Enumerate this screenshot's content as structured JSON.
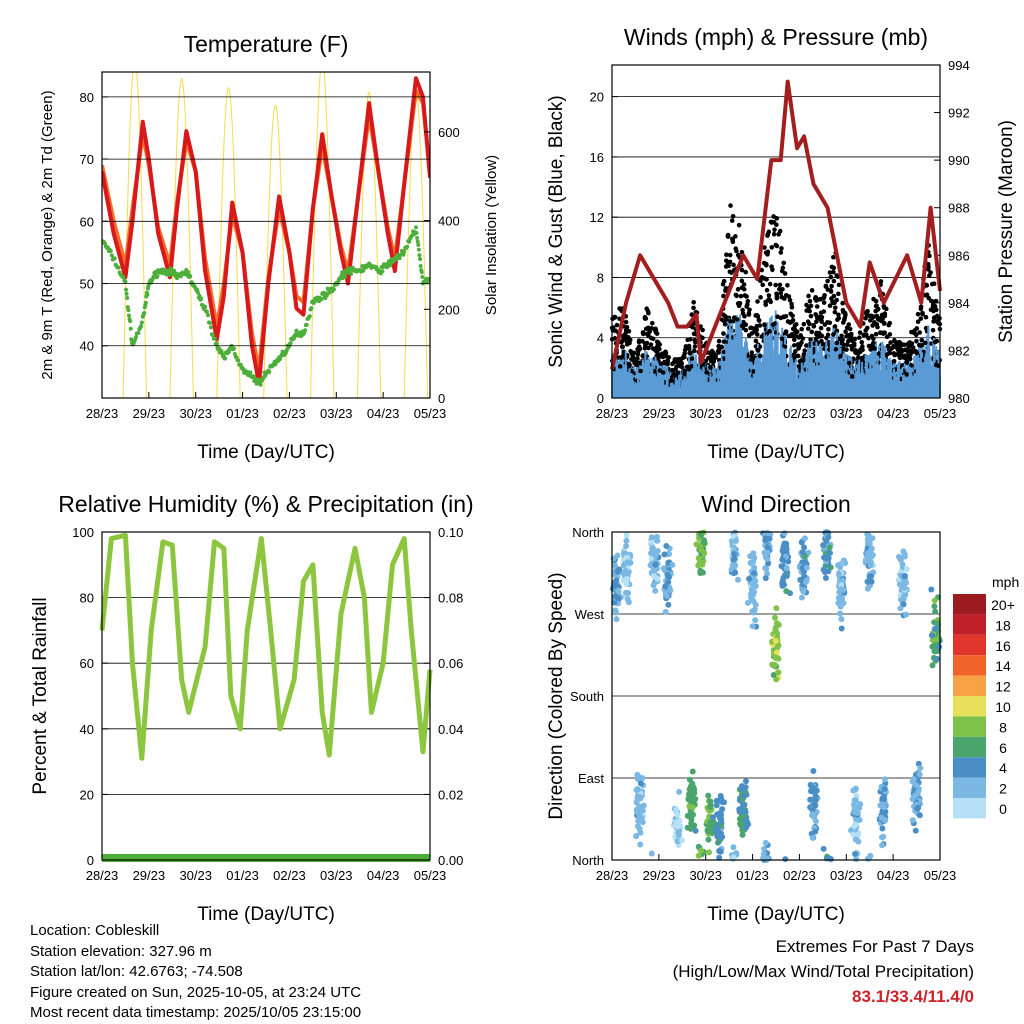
{
  "info": {
    "location": "Location: Cobleskill",
    "elevation": "Station elevation: 327.96 m",
    "latlon": "Station lat/lon: 42.6763; -74.508",
    "created": "Figure created on Sun, 2025-10-05, at 23:24 UTC",
    "recent": "Most recent data timestamp: 2025/10/05 23:15:00"
  },
  "extremes": {
    "title": "Extremes For Past 7 Days",
    "subtitle": "(High/Low/Max Wind/Total Precipitation)",
    "values": "83.1/33.4/11.4/0"
  },
  "x_ticks": [
    "28/23",
    "29/23",
    "30/23",
    "01/23",
    "02/23",
    "03/23",
    "04/23",
    "05/23"
  ],
  "chart_data": [
    {
      "type": "line",
      "title": "Temperature (F)",
      "xlabel": "Time (Day/UTC)",
      "ylabel": "2m & 9m T (Red, Orange) & 2m Td (Green)",
      "y2label": "Solar Insolation (Yellow)",
      "ylim": [
        31.6,
        84
      ],
      "y2lim": [
        0,
        735
      ],
      "yticks": [
        40,
        50,
        60,
        70,
        80
      ],
      "y2ticks": [
        0,
        200,
        400,
        600
      ],
      "t": [
        0,
        0.25,
        0.5,
        0.65,
        0.87,
        1.0,
        1.2,
        1.45,
        1.6,
        1.8,
        2.0,
        2.2,
        2.45,
        2.6,
        2.78,
        3.0,
        3.2,
        3.35,
        3.55,
        3.78,
        4.0,
        4.15,
        4.3,
        4.5,
        4.7,
        4.9,
        5.1,
        5.25,
        5.45,
        5.7,
        5.9,
        6.1,
        6.25,
        6.45,
        6.7,
        6.85,
        7.0
      ],
      "series": [
        {
          "name": "2m T",
          "color": "#d7191c",
          "values": [
            68,
            58,
            51,
            60,
            76,
            70,
            58,
            51,
            62,
            74.5,
            68,
            52,
            41,
            48,
            63,
            55,
            40,
            34,
            50,
            64,
            55,
            46,
            45,
            62,
            74,
            64,
            55,
            50,
            63,
            79,
            68,
            58,
            52,
            66,
            83,
            80,
            67
          ]
        },
        {
          "name": "9m T",
          "color": "#f46d2a",
          "values": [
            69,
            60,
            53,
            62,
            74,
            69,
            59,
            53,
            63,
            73,
            68,
            54,
            43,
            50,
            61,
            55,
            42,
            36,
            51,
            62,
            55,
            48,
            47,
            62,
            72,
            64,
            56,
            52,
            63,
            77,
            68,
            59,
            54,
            66,
            81,
            79,
            68
          ]
        },
        {
          "name": "2m Td",
          "color": "#4daf3a",
          "values": [
            57,
            54,
            50,
            40,
            44,
            50,
            52,
            52,
            51,
            52,
            49,
            46,
            40,
            38,
            40,
            36,
            35,
            34,
            36,
            38,
            40,
            42,
            42,
            47,
            48,
            49,
            51,
            52,
            52,
            53,
            52,
            53,
            54,
            55,
            59,
            50,
            51
          ]
        }
      ],
      "solar_peaks": [
        {
          "day": 0,
          "peak": 760
        },
        {
          "day": 1,
          "peak": 720
        },
        {
          "day": 2,
          "peak": 700
        },
        {
          "day": 3,
          "peak": 660
        },
        {
          "day": 4,
          "peak": 760
        },
        {
          "day": 5,
          "peak": 690
        },
        {
          "day": 6,
          "peak": 690
        }
      ]
    },
    {
      "type": "scatter",
      "title": "Winds (mph) & Pressure (mb)",
      "xlabel": "Time (Day/UTC)",
      "ylabel": "Sonic Wind & Gust (Blue, Black)",
      "y2label": "Station Pressure (Maroon)",
      "ylim": [
        0,
        22.1
      ],
      "y2lim": [
        980,
        994
      ],
      "yticks": [
        0,
        4,
        8,
        12,
        16,
        20
      ],
      "y2ticks": [
        980,
        982,
        984,
        986,
        988,
        990,
        992,
        994
      ],
      "t": [
        0,
        0.25,
        0.5,
        0.75,
        1.0,
        1.25,
        1.5,
        1.75,
        2.0,
        2.25,
        2.5,
        2.75,
        3.0,
        3.25,
        3.5,
        3.75,
        4.0,
        4.25,
        4.5,
        4.75,
        5.0,
        5.25,
        5.5,
        5.75,
        6.0,
        6.25,
        6.5,
        6.75,
        7.0
      ],
      "gust_level": [
        4,
        5,
        2,
        5,
        3,
        2,
        2,
        5,
        3,
        2,
        10,
        9,
        3,
        8,
        10,
        6,
        3,
        6,
        5,
        8,
        4,
        3,
        5,
        6,
        3,
        3,
        4,
        8,
        4
      ],
      "pressure_t": [
        0,
        0.3,
        0.6,
        0.9,
        1.2,
        1.4,
        1.6,
        1.8,
        1.9,
        2.1,
        2.4,
        2.8,
        3.1,
        3.4,
        3.6,
        3.75,
        3.95,
        4.1,
        4.3,
        4.6,
        5.0,
        5.3,
        5.5,
        5.8,
        6.1,
        6.3,
        6.6,
        6.8,
        7.0
      ],
      "pressure": [
        981.2,
        984,
        986,
        985,
        984,
        983,
        983,
        983.5,
        981.5,
        982.5,
        984,
        986,
        985,
        990,
        990,
        993.3,
        990.5,
        991,
        989,
        988,
        984,
        983,
        985.7,
        984,
        985.2,
        986,
        984,
        988,
        984.5
      ],
      "colors": {
        "wind": "#5b9bd5",
        "gust": "#000000",
        "pressure": "#a31f1f"
      }
    },
    {
      "type": "line",
      "title": "Relative Humidity (%) & Precipitation (in)",
      "xlabel": "Time (Day/UTC)",
      "ylabel": "Percent & Total Rainfall",
      "ylim": [
        0,
        100
      ],
      "y2lim": [
        0,
        0.1
      ],
      "yticks": [
        0,
        20,
        40,
        60,
        80,
        100
      ],
      "y2ticks": [
        "0.00",
        "0.02",
        "0.04",
        "0.06",
        "0.08",
        "0.10"
      ],
      "t": [
        0,
        0.2,
        0.5,
        0.65,
        0.85,
        1.05,
        1.3,
        1.5,
        1.7,
        1.85,
        2.2,
        2.4,
        2.6,
        2.75,
        2.95,
        3.1,
        3.4,
        3.6,
        3.8,
        4.1,
        4.3,
        4.5,
        4.7,
        4.85,
        5.1,
        5.4,
        5.6,
        5.75,
        6.0,
        6.2,
        6.45,
        6.6,
        6.85,
        7.0
      ],
      "rh": [
        70,
        98,
        99,
        60,
        31,
        70,
        97,
        96,
        55,
        45,
        65,
        97,
        95,
        50,
        40,
        70,
        98,
        70,
        40,
        55,
        85,
        90,
        45,
        32,
        75,
        95,
        80,
        45,
        60,
        90,
        98,
        70,
        33,
        58
      ],
      "precip": 0,
      "colors": {
        "rh": "#8cc63f",
        "precip": "#4daf3a"
      }
    },
    {
      "type": "scatter",
      "title": "Wind Direction",
      "xlabel": "Time (Day/UTC)",
      "ylabel": "Direction (Colored By Speed)",
      "yticks": [
        "North",
        "East",
        "South",
        "West",
        "North"
      ],
      "ylim": [
        0,
        360
      ],
      "clusters": [
        {
          "day": 0.1,
          "dir": 300,
          "spd": 3
        },
        {
          "day": 0.3,
          "dir": 320,
          "spd": 1
        },
        {
          "day": 0.6,
          "dir": 60,
          "spd": 2
        },
        {
          "day": 0.9,
          "dir": 330,
          "spd": 2
        },
        {
          "day": 1.2,
          "dir": 310,
          "spd": 3
        },
        {
          "day": 1.4,
          "dir": 40,
          "spd": 1
        },
        {
          "day": 1.7,
          "dir": 60,
          "spd": 6
        },
        {
          "day": 1.9,
          "dir": 350,
          "spd": 7
        },
        {
          "day": 2.1,
          "dir": 45,
          "spd": 7
        },
        {
          "day": 2.3,
          "dir": 40,
          "spd": 4
        },
        {
          "day": 2.6,
          "dir": 340,
          "spd": 2
        },
        {
          "day": 2.8,
          "dir": 55,
          "spd": 5
        },
        {
          "day": 3.0,
          "dir": 300,
          "spd": 2
        },
        {
          "day": 3.3,
          "dir": 350,
          "spd": 3
        },
        {
          "day": 3.5,
          "dir": 235,
          "spd": 8
        },
        {
          "day": 3.7,
          "dir": 330,
          "spd": 4
        },
        {
          "day": 4.1,
          "dir": 320,
          "spd": 3
        },
        {
          "day": 4.3,
          "dir": 60,
          "spd": 3
        },
        {
          "day": 4.6,
          "dir": 340,
          "spd": 4
        },
        {
          "day": 4.9,
          "dir": 300,
          "spd": 2
        },
        {
          "day": 5.2,
          "dir": 40,
          "spd": 2
        },
        {
          "day": 5.5,
          "dir": 330,
          "spd": 2
        },
        {
          "day": 5.8,
          "dir": 60,
          "spd": 3
        },
        {
          "day": 6.2,
          "dir": 300,
          "spd": 2
        },
        {
          "day": 6.5,
          "dir": 70,
          "spd": 3
        },
        {
          "day": 6.9,
          "dir": 250,
          "spd": 6
        }
      ],
      "legend": {
        "title": "mph",
        "labels": [
          "20+",
          "18",
          "16",
          "14",
          "12",
          "10",
          "8",
          "6",
          "4",
          "2",
          "0"
        ],
        "colors": [
          "#9c1b1e",
          "#c0202a",
          "#e0352b",
          "#f06429",
          "#f7a345",
          "#e8e05a",
          "#7ec24a",
          "#4aa56d",
          "#4a8ec6",
          "#7bb8e3",
          "#b5e0f5"
        ]
      }
    }
  ]
}
